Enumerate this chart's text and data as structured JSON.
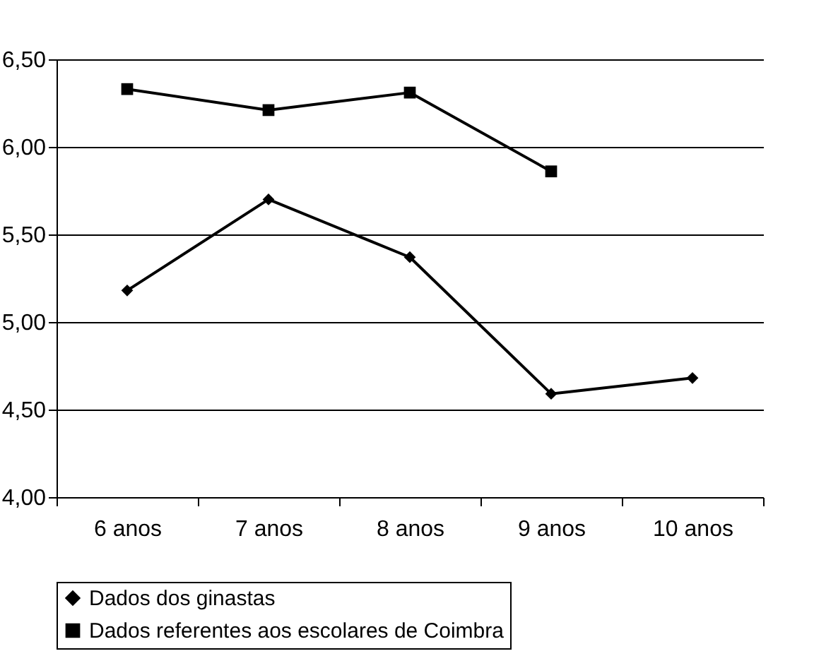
{
  "chart_data": {
    "type": "line",
    "categories": [
      "6 anos",
      "7 anos",
      "8 anos",
      "9 anos",
      "10 anos"
    ],
    "series": [
      {
        "name": "Dados dos ginastas",
        "color": "#000000",
        "marker": "diamond",
        "values": [
          5.18,
          5.7,
          5.37,
          4.59,
          4.68
        ]
      },
      {
        "name": "Dados referentes aos escolares de Coimbra",
        "color": "#000000",
        "marker": "square",
        "values": [
          6.33,
          6.21,
          6.31,
          5.86,
          null
        ]
      }
    ],
    "ylim": [
      4,
      6.5
    ],
    "yticks": [
      {
        "value": 4,
        "label": "4,00"
      },
      {
        "value": 4.5,
        "label": "4,50"
      },
      {
        "value": 5,
        "label": "5,00"
      },
      {
        "value": 5.5,
        "label": "5,50"
      },
      {
        "value": 6,
        "label": "6,00"
      },
      {
        "value": 6.5,
        "label": "6,50"
      }
    ],
    "grid": "y",
    "legend": "bottom",
    "line_style": "solid"
  }
}
